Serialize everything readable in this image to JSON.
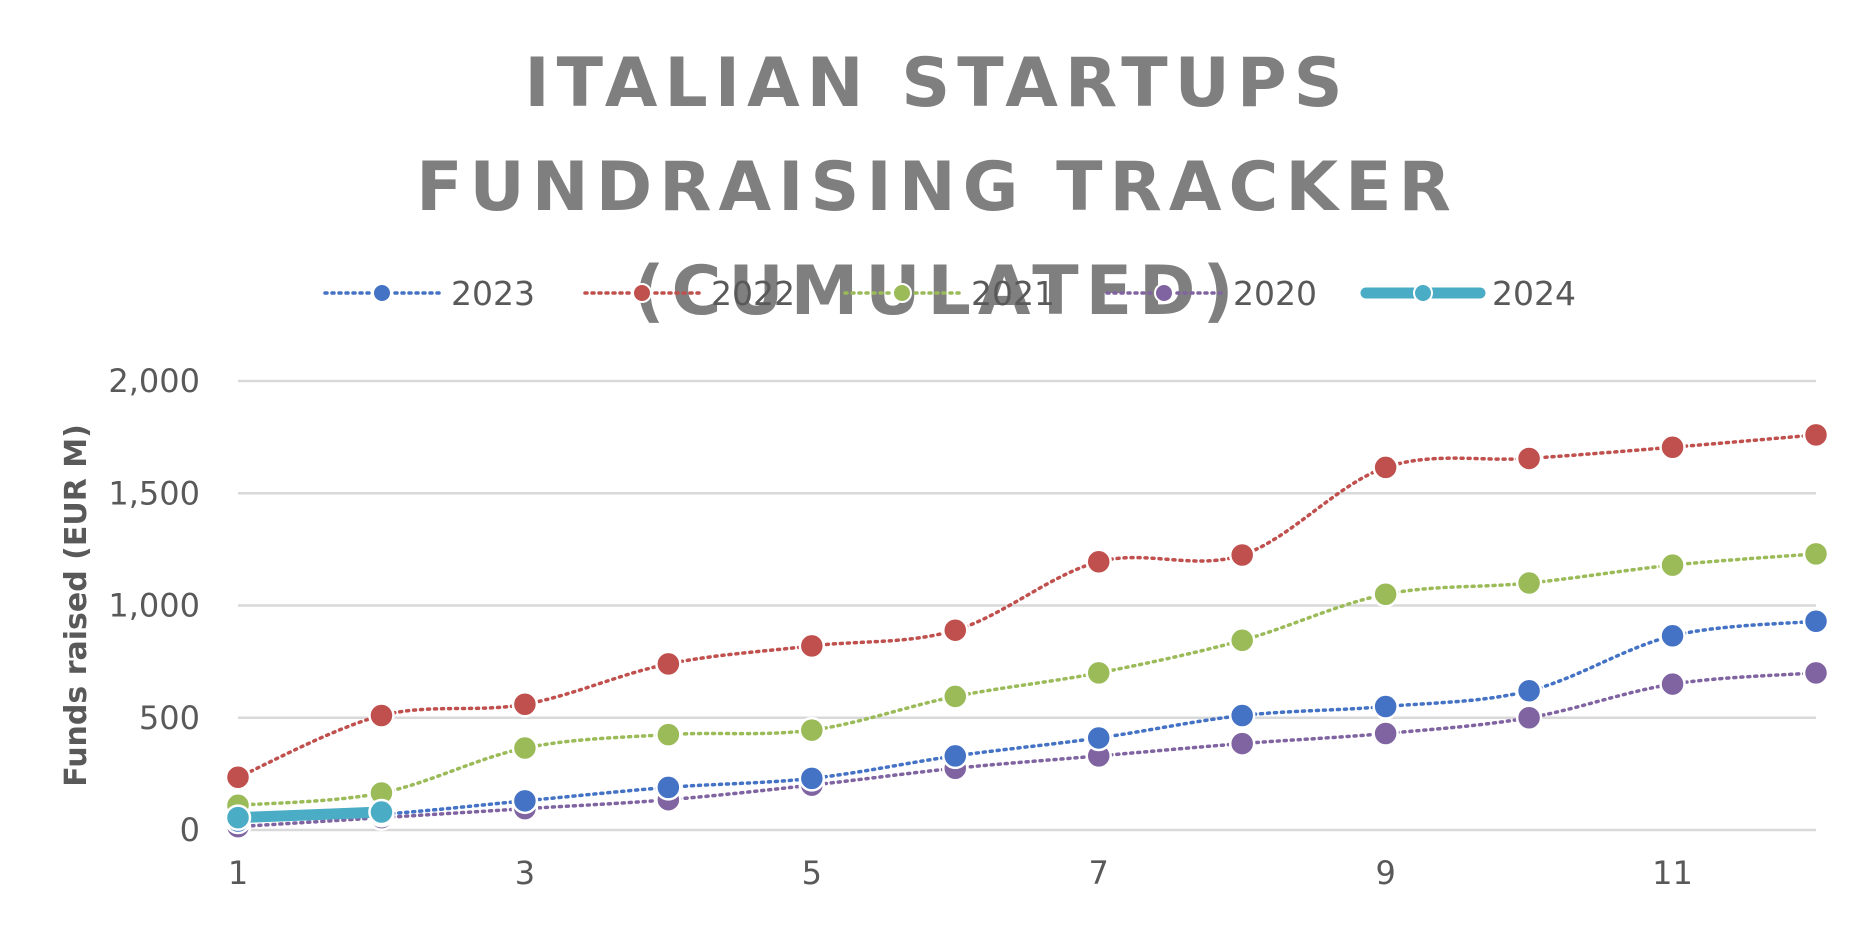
{
  "chart_data": {
    "type": "line",
    "title": "ITALIAN STARTUPS FUNDRAISING TRACKER (CUMULATED)",
    "xlabel": "",
    "ylabel": "Funds raised (EUR M)",
    "x": [
      1,
      2,
      3,
      4,
      5,
      6,
      7,
      8,
      9,
      10,
      11,
      12
    ],
    "xticks": [
      1,
      3,
      5,
      7,
      9,
      11
    ],
    "ylim": [
      0,
      2000
    ],
    "yticks": [
      0,
      500,
      1000,
      1500,
      2000
    ],
    "ytick_labels": [
      "0",
      "500",
      "1,000",
      "1,500",
      "2,000"
    ],
    "grid": "horizontal",
    "legend": "top",
    "series": [
      {
        "name": "2023",
        "color": "#4472c4",
        "style": "dotted",
        "values": [
          40,
          70,
          130,
          190,
          230,
          330,
          410,
          510,
          550,
          620,
          865,
          930
        ]
      },
      {
        "name": "2022",
        "color": "#c0504d",
        "style": "dotted",
        "values": [
          235,
          510,
          560,
          740,
          820,
          890,
          1195,
          1225,
          1615,
          1655,
          1705,
          1760
        ]
      },
      {
        "name": "2021",
        "color": "#9bbb59",
        "style": "dotted",
        "values": [
          110,
          165,
          365,
          425,
          445,
          595,
          700,
          845,
          1050,
          1100,
          1180,
          1230
        ]
      },
      {
        "name": "2020",
        "color": "#8064a2",
        "style": "dotted",
        "values": [
          15,
          55,
          95,
          135,
          200,
          275,
          330,
          385,
          430,
          500,
          650,
          700
        ]
      },
      {
        "name": "2024",
        "color": "#4bacc6",
        "style": "solid-thick",
        "values": [
          55,
          80,
          null,
          null,
          null,
          null,
          null,
          null,
          null,
          null,
          null,
          null
        ]
      }
    ]
  }
}
